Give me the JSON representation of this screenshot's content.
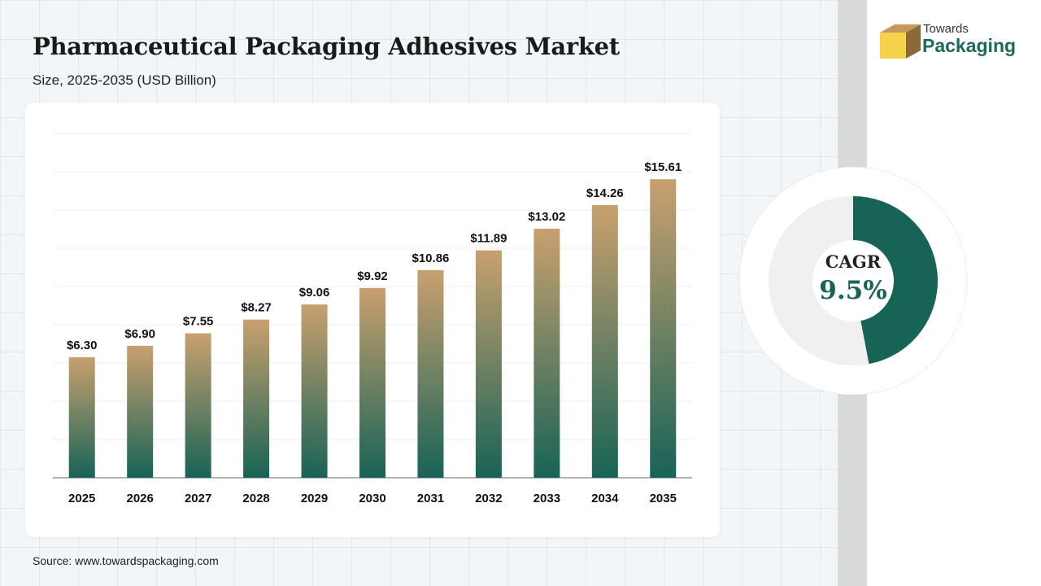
{
  "header": {
    "title": "Pharmaceutical Packaging Adhesives Market",
    "subtitle": "Size, 2025-2035 (USD Billion)"
  },
  "logo": {
    "line1": "Towards",
    "line2": "Packaging",
    "icon": "box-icon"
  },
  "colors": {
    "bar_top": "#c9a06e",
    "bar_bottom": "#176356",
    "accent": "#1a6a5a",
    "ring_track": "#f0f0f0"
  },
  "chart_data": {
    "type": "bar",
    "categories": [
      "2025",
      "2026",
      "2027",
      "2028",
      "2029",
      "2030",
      "2031",
      "2032",
      "2033",
      "2034",
      "2035"
    ],
    "values": [
      6.3,
      6.9,
      7.55,
      8.27,
      9.06,
      9.92,
      10.86,
      11.89,
      13.02,
      14.26,
      15.61
    ],
    "data_labels": [
      "$6.30",
      "$6.90",
      "$7.55",
      "$8.27",
      "$9.06",
      "$9.92",
      "$10.86",
      "$11.89",
      "$13.02",
      "$14.26",
      "$15.61"
    ],
    "title": "Pharmaceutical Packaging Adhesives Market",
    "subtitle": "Size, 2025-2035 (USD Billion)",
    "xlabel": "",
    "ylabel": "",
    "ylim": [
      0,
      18
    ],
    "grid": true,
    "legend": "none"
  },
  "cagr": {
    "label": "CAGR",
    "value": "9.5%",
    "ring_fraction": 0.47
  },
  "footer": {
    "source": "Source: www.towardspackaging.com"
  }
}
